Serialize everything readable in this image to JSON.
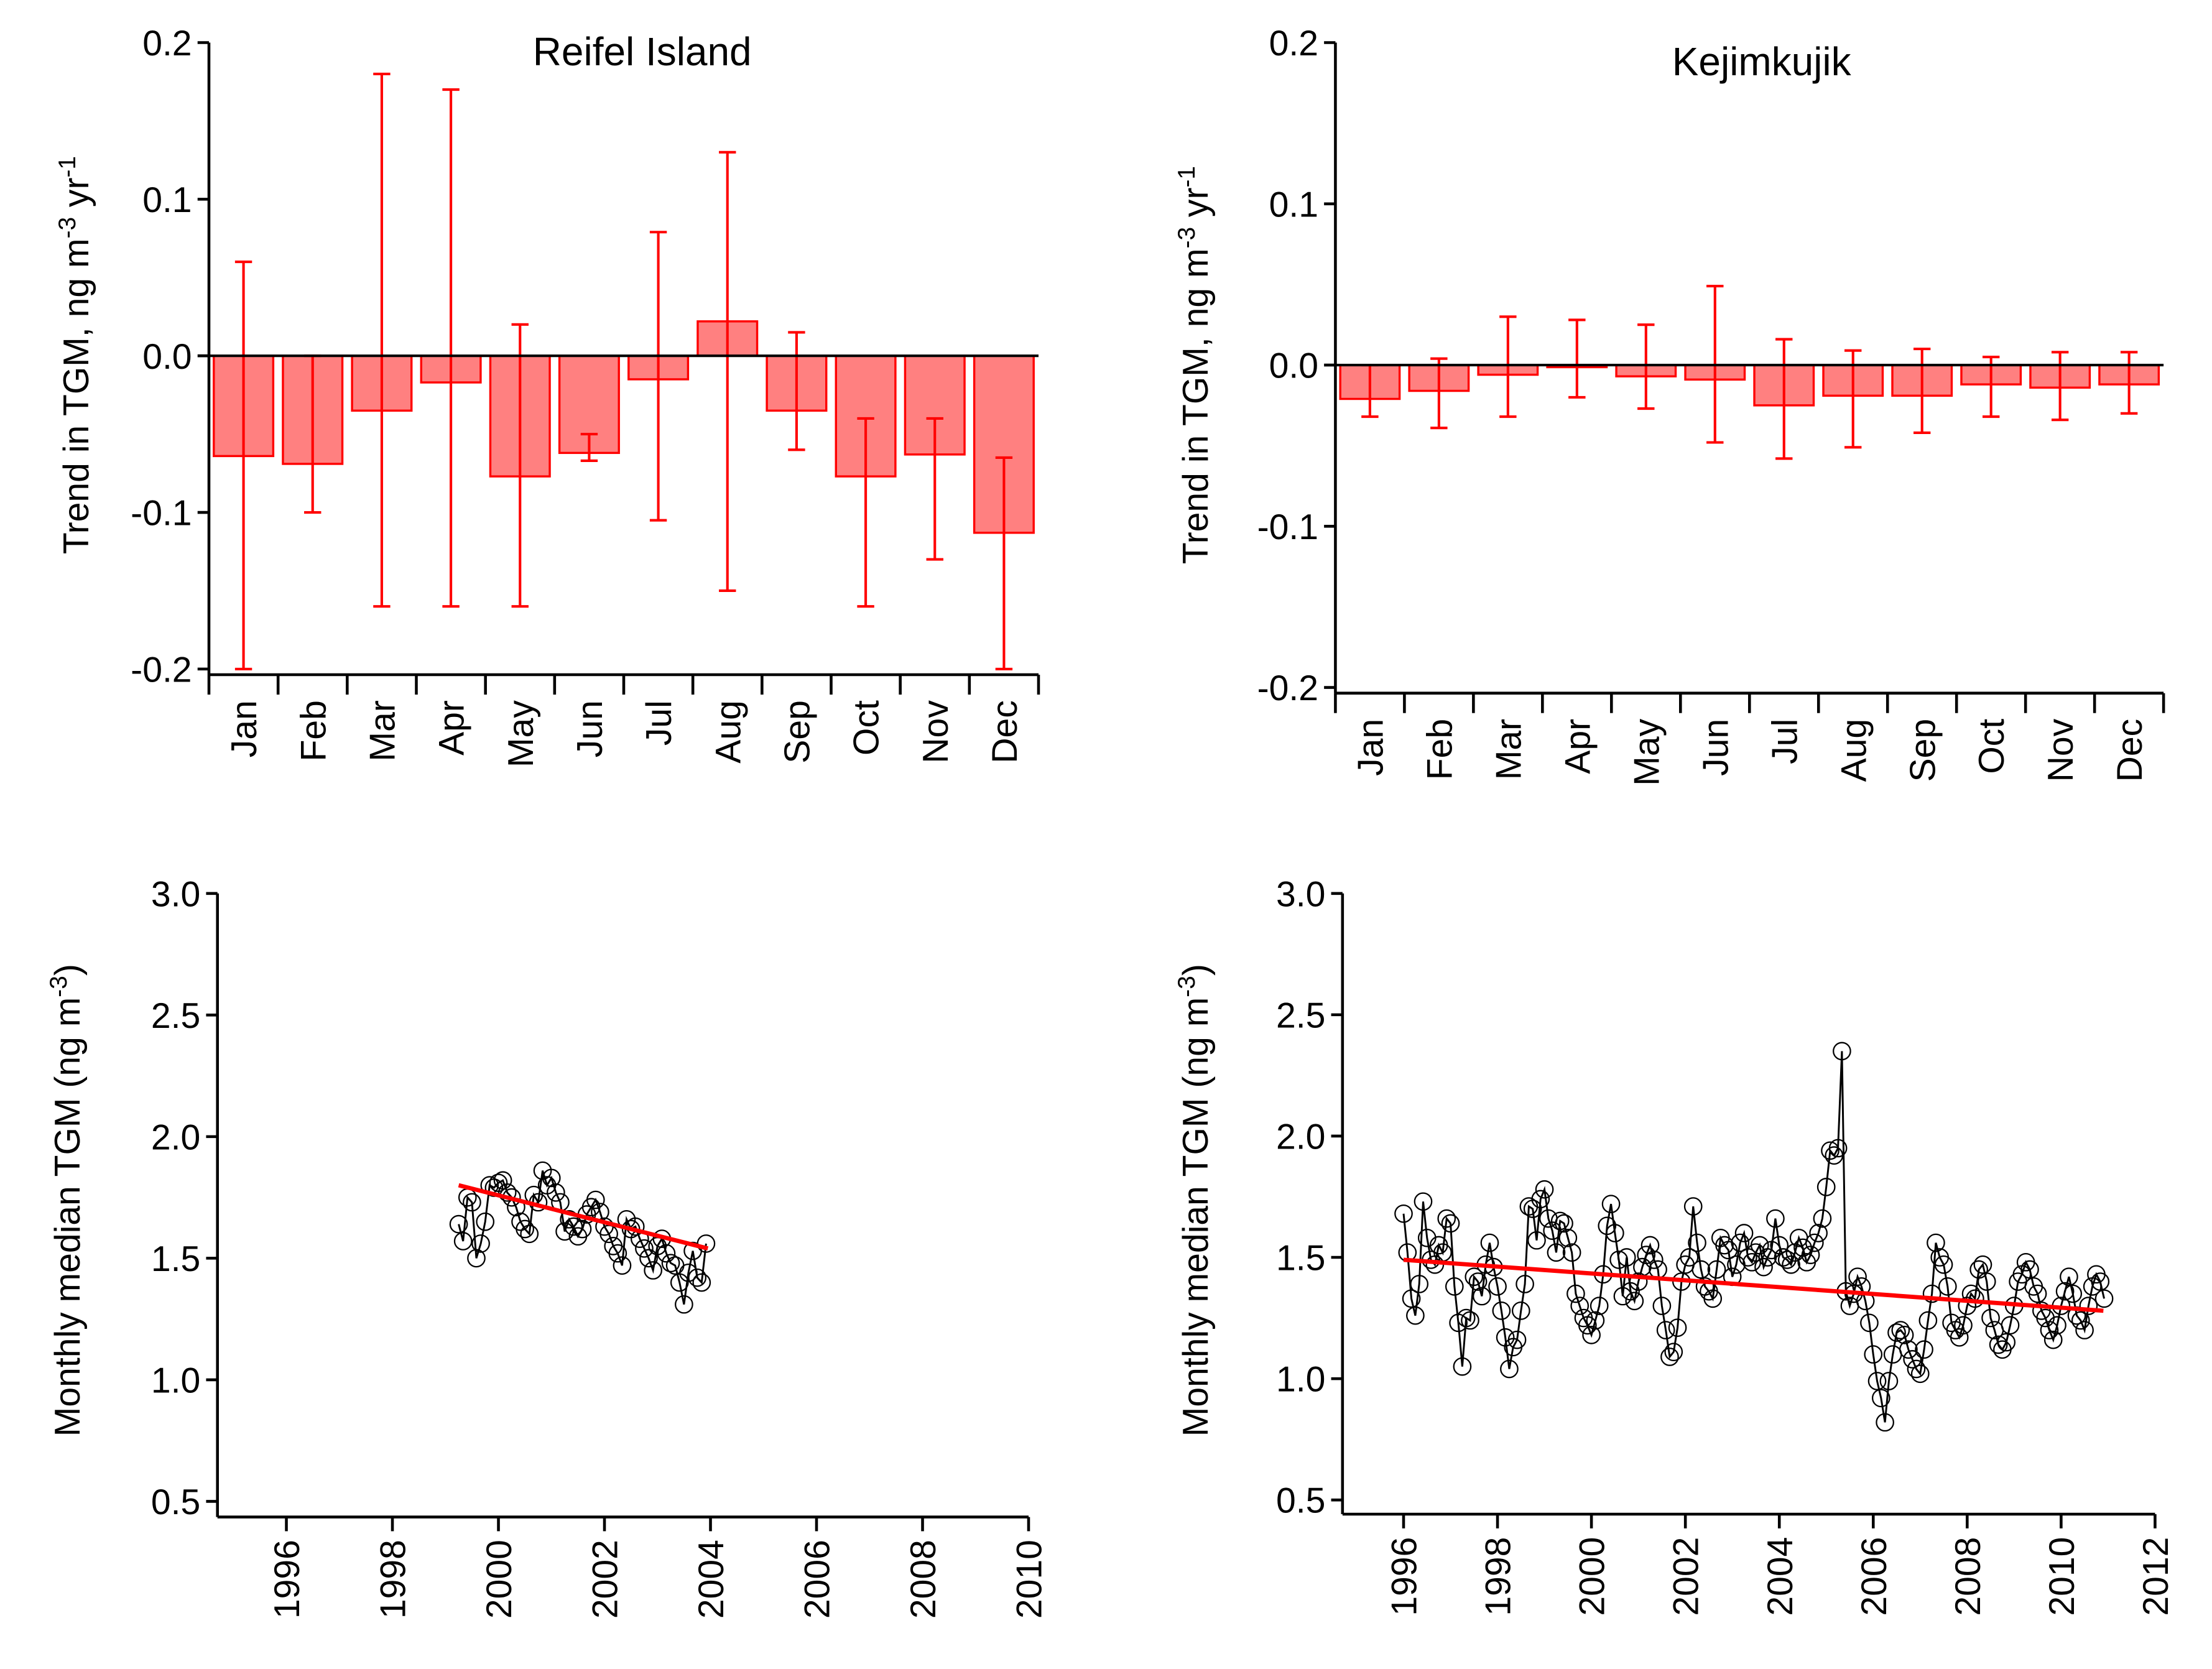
{
  "colors": {
    "bar_fill": "#ff8080",
    "bar_edge": "#ff0000",
    "trend": "#ff0000",
    "series": "#000000",
    "axis": "#000000"
  },
  "chart_data": [
    {
      "type": "bar",
      "title": "Reifel Island",
      "ylabel": {
        "main": "Trend in TGM, ng m",
        "sup1": "-3",
        "mid": " yr",
        "sup2": "-1"
      },
      "ylim": [
        -0.2,
        0.2
      ],
      "yticks": [
        "0.2",
        "0.1",
        "0.0",
        "-0.1",
        "-0.2"
      ],
      "ytick_values": [
        0.2,
        0.1,
        0.0,
        -0.1,
        -0.2
      ],
      "categories": [
        "Jan",
        "Feb",
        "Mar",
        "Apr",
        "May",
        "Jun",
        "Jul",
        "Aug",
        "Sep",
        "Oct",
        "Nov",
        "Dec"
      ],
      "values": [
        -0.064,
        -0.069,
        -0.035,
        -0.017,
        -0.077,
        -0.062,
        -0.015,
        0.022,
        -0.035,
        -0.077,
        -0.063,
        -0.113
      ],
      "err_low": [
        -0.2,
        -0.1,
        -0.16,
        -0.16,
        -0.16,
        -0.067,
        -0.105,
        -0.15,
        -0.06,
        -0.16,
        -0.13,
        -0.2
      ],
      "err_high": [
        0.06,
        0.0,
        0.18,
        0.17,
        0.02,
        -0.05,
        0.079,
        0.13,
        0.015,
        -0.04,
        -0.04,
        -0.065
      ]
    },
    {
      "type": "bar",
      "title": "Kejimkujik",
      "ylabel": {
        "main": "Trend in TGM, ng m",
        "sup1": "-3",
        "mid": " yr",
        "sup2": "-1"
      },
      "ylim": [
        -0.2,
        0.2
      ],
      "yticks": [
        "0.2",
        "0.1",
        "0.0",
        "-0.1",
        "-0.2"
      ],
      "ytick_values": [
        0.2,
        0.1,
        0.0,
        -0.1,
        -0.2
      ],
      "categories": [
        "Jan",
        "Feb",
        "Mar",
        "Apr",
        "May",
        "Jun",
        "Jul",
        "Aug",
        "Sep",
        "Oct",
        "Nov",
        "Dec"
      ],
      "values": [
        -0.021,
        -0.016,
        -0.006,
        -0.001,
        -0.007,
        -0.009,
        -0.025,
        -0.019,
        -0.019,
        -0.012,
        -0.014,
        -0.012
      ],
      "err_low": [
        -0.032,
        -0.039,
        -0.032,
        -0.02,
        -0.027,
        -0.048,
        -0.058,
        -0.051,
        -0.042,
        -0.032,
        -0.034,
        -0.03
      ],
      "err_high": [
        0.0,
        0.004,
        0.03,
        0.028,
        0.025,
        0.049,
        0.016,
        0.009,
        0.01,
        0.005,
        0.008,
        0.008
      ]
    },
    {
      "type": "line",
      "title": "",
      "ylabel": {
        "main": "Monthly median TGM (ng m",
        "sup1": "-3",
        "mid": ")",
        "sup2": ""
      },
      "ylim": [
        0.5,
        3.0
      ],
      "xlim": [
        1994.7,
        2010
      ],
      "yticks": [
        "3.0",
        "2.5",
        "2.0",
        "1.5",
        "1.0",
        "0.5"
      ],
      "ytick_values": [
        3.0,
        2.5,
        2.0,
        1.5,
        1.0,
        0.5
      ],
      "xticks": [
        "1996",
        "1998",
        "2000",
        "2002",
        "2004",
        "2006",
        "2008",
        "2010"
      ],
      "xtick_values": [
        1996,
        1998,
        2000,
        2002,
        2004,
        2006,
        2008,
        2010
      ],
      "x_start": 1999.25,
      "x_step": 0.08333,
      "values": [
        1.64,
        1.57,
        1.75,
        1.73,
        1.5,
        1.56,
        1.65,
        1.8,
        1.79,
        1.81,
        1.82,
        1.77,
        1.75,
        1.71,
        1.65,
        1.62,
        1.6,
        1.76,
        1.73,
        1.86,
        1.8,
        1.83,
        1.77,
        1.73,
        1.61,
        1.66,
        1.63,
        1.59,
        1.62,
        1.68,
        1.71,
        1.74,
        1.69,
        1.63,
        1.6,
        1.55,
        1.52,
        1.47,
        1.66,
        1.62,
        1.63,
        1.58,
        1.54,
        1.5,
        1.45,
        1.55,
        1.58,
        1.52,
        1.48,
        1.47,
        1.4,
        1.31,
        1.44,
        1.53,
        1.42,
        1.4,
        1.56
      ],
      "trend": {
        "x": [
          1999.25,
          2003.95
        ],
        "y": [
          1.8,
          1.54
        ]
      }
    },
    {
      "type": "line",
      "title": "",
      "ylabel": {
        "main": "Monthly median TGM (ng m",
        "sup1": "-3",
        "mid": ")",
        "sup2": ""
      },
      "ylim": [
        0.5,
        3.0
      ],
      "xlim": [
        1994.7,
        2012
      ],
      "yticks": [
        "3.0",
        "2.5",
        "2.0",
        "1.5",
        "1.0",
        "0.5"
      ],
      "ytick_values": [
        3.0,
        2.5,
        2.0,
        1.5,
        1.0,
        0.5
      ],
      "xticks": [
        "1996",
        "1998",
        "2000",
        "2002",
        "2004",
        "2006",
        "2008",
        "2010",
        "2012"
      ],
      "xtick_values": [
        1996,
        1998,
        2000,
        2002,
        2004,
        2006,
        2008,
        2010,
        2012
      ],
      "x_start": 1996.0,
      "x_step": 0.08333,
      "values": [
        1.68,
        1.52,
        1.33,
        1.26,
        1.39,
        1.73,
        1.58,
        1.49,
        1.47,
        1.55,
        1.52,
        1.66,
        1.64,
        1.38,
        1.23,
        1.05,
        1.25,
        1.24,
        1.42,
        1.4,
        1.34,
        1.47,
        1.56,
        1.46,
        1.38,
        1.28,
        1.17,
        1.04,
        1.13,
        1.16,
        1.28,
        1.39,
        1.71,
        1.7,
        1.57,
        1.74,
        1.78,
        1.66,
        1.61,
        1.52,
        1.65,
        1.64,
        1.58,
        1.52,
        1.35,
        1.3,
        1.25,
        1.22,
        1.18,
        1.24,
        1.3,
        1.43,
        1.63,
        1.72,
        1.6,
        1.49,
        1.34,
        1.5,
        1.36,
        1.32,
        1.4,
        1.46,
        1.51,
        1.55,
        1.49,
        1.45,
        1.3,
        1.2,
        1.09,
        1.11,
        1.21,
        1.4,
        1.47,
        1.5,
        1.71,
        1.56,
        1.45,
        1.38,
        1.36,
        1.33,
        1.45,
        1.58,
        1.55,
        1.53,
        1.42,
        1.47,
        1.56,
        1.6,
        1.5,
        1.48,
        1.52,
        1.55,
        1.46,
        1.5,
        1.53,
        1.66,
        1.55,
        1.5,
        1.49,
        1.47,
        1.52,
        1.58,
        1.54,
        1.48,
        1.51,
        1.56,
        1.6,
        1.66,
        1.79,
        1.94,
        1.92,
        1.95,
        2.35,
        1.36,
        1.3,
        1.35,
        1.42,
        1.38,
        1.32,
        1.23,
        1.1,
        0.99,
        0.92,
        0.82,
        0.99,
        1.1,
        1.19,
        1.2,
        1.18,
        1.12,
        1.08,
        1.04,
        1.02,
        1.12,
        1.24,
        1.35,
        1.56,
        1.5,
        1.47,
        1.38,
        1.23,
        1.2,
        1.17,
        1.22,
        1.3,
        1.35,
        1.33,
        1.45,
        1.47,
        1.4,
        1.25,
        1.2,
        1.14,
        1.12,
        1.15,
        1.22,
        1.3,
        1.4,
        1.43,
        1.48,
        1.45,
        1.38,
        1.35,
        1.28,
        1.25,
        1.2,
        1.16,
        1.22,
        1.3,
        1.36,
        1.42,
        1.35,
        1.26,
        1.24,
        1.2,
        1.3,
        1.38,
        1.43,
        1.4,
        1.33
      ],
      "trend": {
        "x": [
          1996.0,
          2010.9
        ],
        "y": [
          1.49,
          1.28
        ]
      }
    }
  ]
}
